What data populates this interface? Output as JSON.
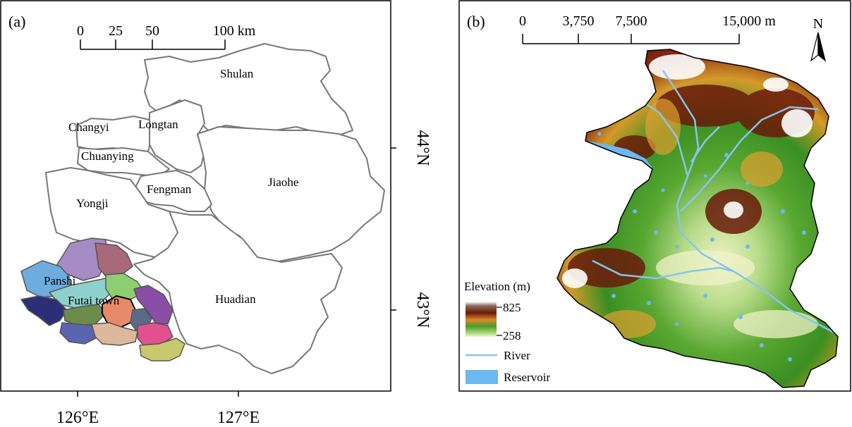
{
  "panel_a": {
    "label": "(a)",
    "scale_bar": {
      "ticks": [
        "0",
        "25",
        "50",
        "100 km"
      ]
    },
    "regions": [
      "Shulan",
      "Changyi",
      "Longtan",
      "Chuanying",
      "Jiaohe",
      "Fengman",
      "Yongji",
      "Panshi",
      "Futai town",
      "Huadian"
    ],
    "lon_labels": [
      "126°E",
      "127°E"
    ],
    "lat_labels": [
      "44°N",
      "43°N"
    ]
  },
  "panel_b": {
    "label": "(b)",
    "scale_bar": {
      "ticks": [
        "0",
        "3,750",
        "7,500",
        "15,000 m"
      ]
    },
    "north_label": "N",
    "legend": {
      "title": "Elevation (m)",
      "max": "825",
      "min": "258",
      "river": "River",
      "reservoir": "Reservoir"
    },
    "colors": {
      "river": "#86c5ee",
      "reservoir": "#6cb8f2"
    }
  }
}
